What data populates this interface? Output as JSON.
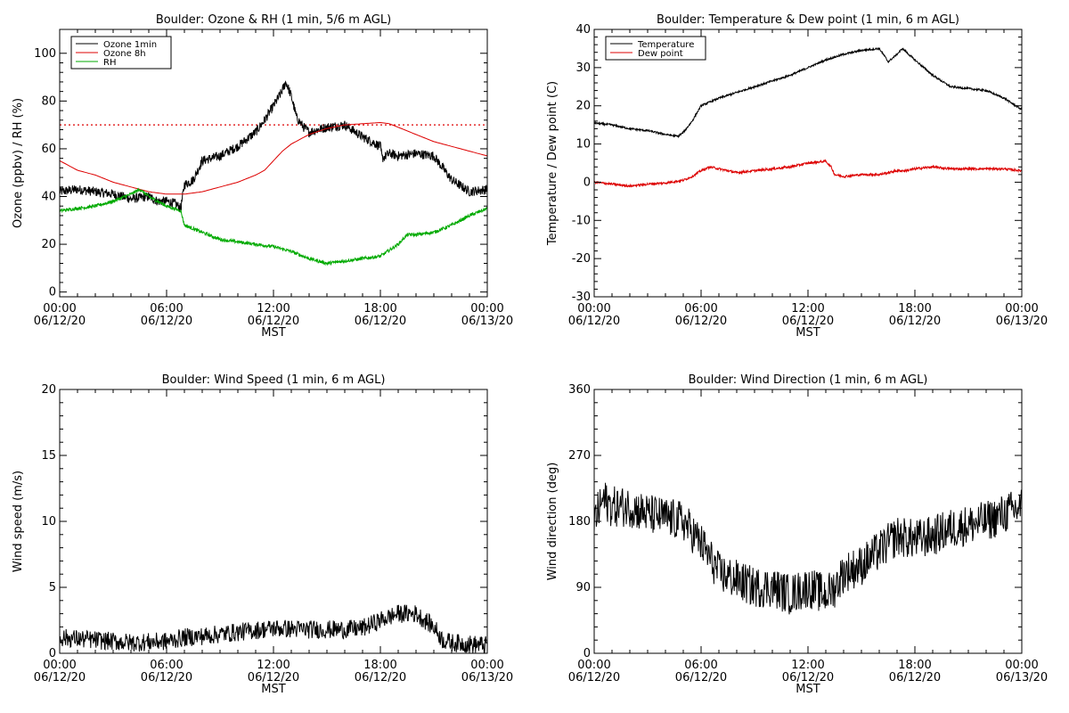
{
  "colors": {
    "black": "#000000",
    "red": "#dd0000",
    "green": "#00aa00"
  },
  "chart_data": [
    {
      "id": "ozone-rh",
      "type": "line",
      "title": "Boulder: Ozone & RH (1 min, 5/6 m AGL)",
      "ylabel": "Ozone (ppbv) / RH (%)",
      "xlabel": "MST",
      "xlim": [
        0,
        24
      ],
      "ylim": [
        -2,
        110
      ],
      "yticks": [
        0,
        20,
        40,
        60,
        80,
        100
      ],
      "xticks": [
        {
          "value": 0,
          "time": "00:00",
          "date": "06/12/20"
        },
        {
          "value": 6,
          "time": "06:00",
          "date": "06/12/20"
        },
        {
          "value": 12,
          "time": "12:00",
          "date": "06/12/20"
        },
        {
          "value": 18,
          "time": "18:00",
          "date": "06/12/20"
        },
        {
          "value": 24,
          "time": "00:00",
          "date": "06/13/20"
        }
      ],
      "legend": {
        "position": "top-left",
        "entries": [
          {
            "name": "Ozone 1min",
            "color": "#000000"
          },
          {
            "name": "Ozone 8h",
            "color": "#dd0000"
          },
          {
            "name": "RH",
            "color": "#00aa00"
          }
        ]
      },
      "reference_lines": [
        {
          "y": 70,
          "color": "#dd0000",
          "style": "dotted"
        }
      ],
      "series": [
        {
          "name": "Ozone 1min",
          "color": "#000000",
          "noise": 2.0,
          "step": 0.02,
          "points": [
            [
              0,
              42
            ],
            [
              1,
              43
            ],
            [
              2,
              42
            ],
            [
              3,
              41
            ],
            [
              4,
              39
            ],
            [
              5,
              40
            ],
            [
              5.5,
              38
            ],
            [
              6,
              38
            ],
            [
              6.5,
              37
            ],
            [
              6.8,
              35
            ],
            [
              7,
              45
            ],
            [
              7.5,
              47
            ],
            [
              8,
              55
            ],
            [
              9,
              57
            ],
            [
              10,
              61
            ],
            [
              11,
              67
            ],
            [
              11.5,
              72
            ],
            [
              12,
              78
            ],
            [
              12.4,
              83
            ],
            [
              12.7,
              88
            ],
            [
              13,
              82
            ],
            [
              13.3,
              73
            ],
            [
              13.7,
              69
            ],
            [
              14,
              67
            ],
            [
              15,
              69
            ],
            [
              16,
              70
            ],
            [
              17,
              65
            ],
            [
              17.5,
              63
            ],
            [
              18,
              61
            ],
            [
              18.1,
              56
            ],
            [
              18.5,
              58
            ],
            [
              19,
              57
            ],
            [
              20,
              58
            ],
            [
              21,
              57
            ],
            [
              21.5,
              52
            ],
            [
              22,
              47
            ],
            [
              23,
              42
            ],
            [
              24,
              43
            ]
          ]
        },
        {
          "name": "Ozone 8h",
          "color": "#dd0000",
          "noise": 0,
          "step": 0.1,
          "points": [
            [
              0,
              55
            ],
            [
              1,
              51
            ],
            [
              2,
              49
            ],
            [
              3,
              46
            ],
            [
              4,
              44
            ],
            [
              5,
              42
            ],
            [
              6,
              41
            ],
            [
              7,
              41
            ],
            [
              8,
              42
            ],
            [
              9,
              44
            ],
            [
              10,
              46
            ],
            [
              11,
              49
            ],
            [
              11.5,
              51
            ],
            [
              12,
              55
            ],
            [
              12.5,
              59
            ],
            [
              13,
              62
            ],
            [
              14,
              66
            ],
            [
              15,
              68.5
            ],
            [
              16,
              70
            ],
            [
              17,
              70.5
            ],
            [
              18,
              71
            ],
            [
              18.5,
              70.5
            ],
            [
              19,
              69
            ],
            [
              20,
              66
            ],
            [
              21,
              63
            ],
            [
              22,
              61
            ],
            [
              23,
              59
            ],
            [
              24,
              57
            ]
          ]
        },
        {
          "name": "RH",
          "color": "#00aa00",
          "noise": 0.7,
          "step": 0.02,
          "points": [
            [
              0,
              34
            ],
            [
              1,
              35
            ],
            [
              2,
              36
            ],
            [
              3,
              38
            ],
            [
              4,
              41
            ],
            [
              4.5,
              43
            ],
            [
              5,
              40
            ],
            [
              6,
              36
            ],
            [
              6.8,
              34
            ],
            [
              7,
              28
            ],
            [
              8,
              25
            ],
            [
              9,
              22
            ],
            [
              10,
              21
            ],
            [
              11,
              20
            ],
            [
              12,
              19
            ],
            [
              13,
              17
            ],
            [
              14,
              14
            ],
            [
              15,
              12
            ],
            [
              16,
              13
            ],
            [
              17,
              14
            ],
            [
              18,
              15
            ],
            [
              19,
              20
            ],
            [
              19.5,
              24
            ],
            [
              20,
              24
            ],
            [
              21,
              25
            ],
            [
              22,
              28
            ],
            [
              23,
              32
            ],
            [
              24,
              35
            ]
          ]
        }
      ]
    },
    {
      "id": "temp-dew",
      "type": "line",
      "title": "Boulder: Temperature & Dew point (1 min, 6 m AGL)",
      "ylabel": "Temperature / Dew point (C)",
      "xlabel": "MST",
      "xlim": [
        0,
        24
      ],
      "ylim": [
        -30,
        40
      ],
      "yticks": [
        -30,
        -20,
        -10,
        0,
        10,
        20,
        30,
        40
      ],
      "xticks": [
        {
          "value": 0,
          "time": "00:00",
          "date": "06/12/20"
        },
        {
          "value": 6,
          "time": "06:00",
          "date": "06/12/20"
        },
        {
          "value": 12,
          "time": "12:00",
          "date": "06/12/20"
        },
        {
          "value": 18,
          "time": "18:00",
          "date": "06/12/20"
        },
        {
          "value": 24,
          "time": "00:00",
          "date": "06/13/20"
        }
      ],
      "legend": {
        "position": "top-left",
        "entries": [
          {
            "name": "Temperature",
            "color": "#000000"
          },
          {
            "name": "Dew point",
            "color": "#dd0000"
          }
        ]
      },
      "reference_lines": [],
      "series": [
        {
          "name": "Temperature",
          "color": "#000000",
          "noise": 0.25,
          "step": 0.02,
          "points": [
            [
              0,
              15.5
            ],
            [
              1,
              15
            ],
            [
              2,
              14
            ],
            [
              3,
              13.5
            ],
            [
              4,
              12.5
            ],
            [
              4.7,
              12
            ],
            [
              5,
              13
            ],
            [
              5.5,
              16
            ],
            [
              6,
              20
            ],
            [
              7,
              22
            ],
            [
              8,
              23.5
            ],
            [
              9,
              25
            ],
            [
              10,
              26.5
            ],
            [
              11,
              28
            ],
            [
              12,
              30
            ],
            [
              13,
              32
            ],
            [
              14,
              33.5
            ],
            [
              15,
              34.5
            ],
            [
              16,
              35
            ],
            [
              16.3,
              33
            ],
            [
              16.5,
              31.5
            ],
            [
              17,
              33.5
            ],
            [
              17.3,
              35
            ],
            [
              18,
              32
            ],
            [
              19,
              28
            ],
            [
              20,
              25
            ],
            [
              21,
              24.5
            ],
            [
              22,
              24
            ],
            [
              23,
              22
            ],
            [
              24,
              19
            ]
          ]
        },
        {
          "name": "Dew point",
          "color": "#dd0000",
          "noise": 0.3,
          "step": 0.02,
          "points": [
            [
              0,
              0
            ],
            [
              1,
              -0.5
            ],
            [
              2,
              -1
            ],
            [
              3,
              -0.5
            ],
            [
              4,
              -0.2
            ],
            [
              5,
              0.5
            ],
            [
              5.5,
              1.5
            ],
            [
              6,
              3
            ],
            [
              6.5,
              4
            ],
            [
              7,
              3.5
            ],
            [
              8,
              2.5
            ],
            [
              9,
              3
            ],
            [
              10,
              3.5
            ],
            [
              11,
              4
            ],
            [
              12,
              5
            ],
            [
              13,
              5.5
            ],
            [
              13.3,
              4
            ],
            [
              13.5,
              2
            ],
            [
              14,
              1.5
            ],
            [
              15,
              2
            ],
            [
              16,
              2
            ],
            [
              16.5,
              2.5
            ],
            [
              17,
              3
            ],
            [
              17.5,
              3
            ],
            [
              18,
              3.5
            ],
            [
              19,
              4
            ],
            [
              20,
              3.5
            ],
            [
              21,
              3.5
            ],
            [
              22,
              3.5
            ],
            [
              23,
              3.5
            ],
            [
              24,
              3
            ]
          ]
        }
      ]
    },
    {
      "id": "wind-speed",
      "type": "line",
      "title": "Boulder: Wind Speed (1 min, 6 m AGL)",
      "ylabel": "Wind speed (m/s)",
      "xlabel": "MST",
      "xlim": [
        0,
        24
      ],
      "ylim": [
        0,
        20
      ],
      "yticks": [
        0,
        5,
        10,
        15,
        20
      ],
      "xticks": [
        {
          "value": 0,
          "time": "00:00",
          "date": "06/12/20"
        },
        {
          "value": 6,
          "time": "06:00",
          "date": "06/12/20"
        },
        {
          "value": 12,
          "time": "12:00",
          "date": "06/12/20"
        },
        {
          "value": 18,
          "time": "18:00",
          "date": "06/12/20"
        },
        {
          "value": 24,
          "time": "00:00",
          "date": "06/13/20"
        }
      ],
      "legend": null,
      "reference_lines": [],
      "series": [
        {
          "name": "Wind speed",
          "color": "#000000",
          "noise": 0.7,
          "step": 0.03,
          "min": 0,
          "points": [
            [
              0,
              1.2
            ],
            [
              2,
              1
            ],
            [
              4,
              0.8
            ],
            [
              6,
              0.9
            ],
            [
              7,
              1.2
            ],
            [
              8,
              1.3
            ],
            [
              10,
              1.6
            ],
            [
              12,
              1.9
            ],
            [
              14,
              1.8
            ],
            [
              16,
              1.8
            ],
            [
              17,
              1.9
            ],
            [
              18,
              2.5
            ],
            [
              19,
              3
            ],
            [
              20,
              3
            ],
            [
              21,
              2
            ],
            [
              21.5,
              1
            ],
            [
              22,
              0.8
            ],
            [
              24,
              0.6
            ]
          ]
        }
      ]
    },
    {
      "id": "wind-direction",
      "type": "line",
      "title": "Boulder: Wind Direction (1 min, 6 m AGL)",
      "ylabel": "Wind direction (deg)",
      "xlabel": "MST",
      "xlim": [
        0,
        24
      ],
      "ylim": [
        0,
        360
      ],
      "yticks": [
        0,
        90,
        180,
        270,
        360
      ],
      "xticks": [
        {
          "value": 0,
          "time": "00:00",
          "date": "06/12/20"
        },
        {
          "value": 6,
          "time": "06:00",
          "date": "06/12/20"
        },
        {
          "value": 12,
          "time": "12:00",
          "date": "06/12/20"
        },
        {
          "value": 18,
          "time": "18:00",
          "date": "06/12/20"
        },
        {
          "value": 24,
          "time": "00:00",
          "date": "06/13/20"
        }
      ],
      "legend": null,
      "reference_lines": [],
      "series": [
        {
          "name": "Wind direction",
          "color": "#000000",
          "noise": 28,
          "step": 0.03,
          "min": 0,
          "max": 360,
          "points": [
            [
              0,
              180
            ],
            [
              0.5,
              210
            ],
            [
              1,
              200
            ],
            [
              2,
              200
            ],
            [
              3,
              190
            ],
            [
              4,
              185
            ],
            [
              5,
              180
            ],
            [
              6,
              150
            ],
            [
              7,
              110
            ],
            [
              8,
              100
            ],
            [
              9,
              90
            ],
            [
              10,
              90
            ],
            [
              11,
              80
            ],
            [
              12,
              90
            ],
            [
              13,
              80
            ],
            [
              13.5,
              90
            ],
            [
              14,
              110
            ],
            [
              15,
              120
            ],
            [
              16,
              140
            ],
            [
              17,
              160
            ],
            [
              18,
              155
            ],
            [
              19,
              160
            ],
            [
              20,
              170
            ],
            [
              21,
              175
            ],
            [
              22,
              180
            ],
            [
              23,
              190
            ],
            [
              24,
              200
            ]
          ]
        }
      ]
    }
  ]
}
